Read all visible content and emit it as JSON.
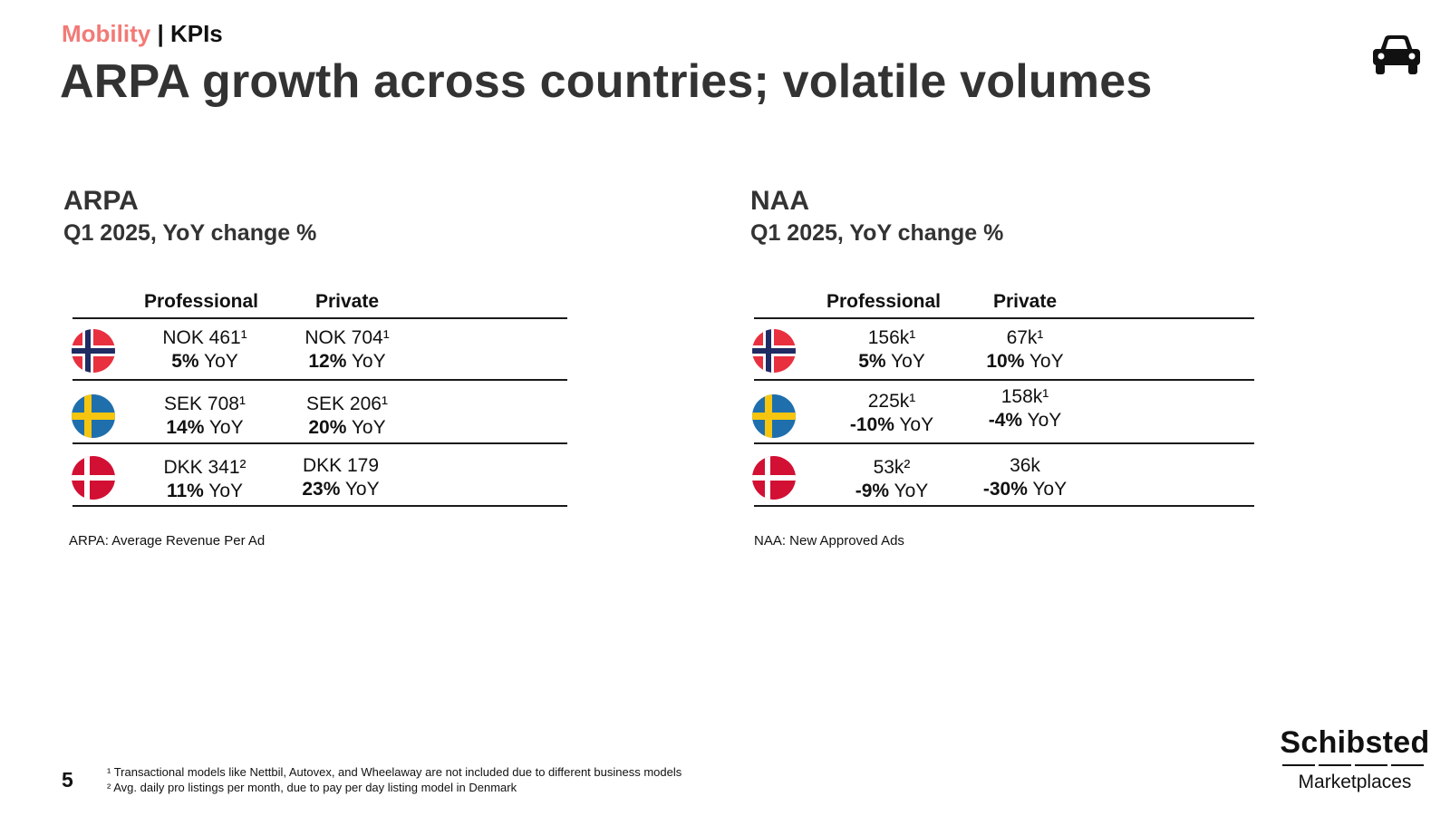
{
  "header": {
    "section": "Mobility",
    "separator": " | ",
    "subsection": "KPIs",
    "title": "ARPA growth across countries; volatile volumes",
    "icon": "car-icon"
  },
  "yoy_suffix": " YoY",
  "arpa": {
    "title": "ARPA",
    "subtitle": "Q1 2025, YoY change %",
    "columns": [
      "Professional",
      "Private"
    ],
    "rows": [
      {
        "flag": "norway-flag-icon",
        "professional": {
          "value": "NOK 461¹",
          "change": "5%"
        },
        "private": {
          "value": "NOK 704¹",
          "change": "12%"
        }
      },
      {
        "flag": "sweden-flag-icon",
        "professional": {
          "value": "SEK 708¹",
          "change": "14%"
        },
        "private": {
          "value": "SEK 206¹",
          "change": "20%"
        }
      },
      {
        "flag": "denmark-flag-icon",
        "professional": {
          "value": "DKK 341²",
          "change": "11%"
        },
        "private": {
          "value": "DKK 179",
          "change": "23%"
        }
      }
    ],
    "note": "ARPA: Average Revenue Per Ad"
  },
  "naa": {
    "title": "NAA",
    "subtitle": "Q1 2025, YoY change %",
    "columns": [
      "Professional",
      "Private"
    ],
    "rows": [
      {
        "flag": "norway-flag-icon",
        "professional": {
          "value": "156k¹",
          "change": "5%"
        },
        "private": {
          "value": "67k¹",
          "change": "10%"
        }
      },
      {
        "flag": "sweden-flag-icon",
        "professional": {
          "value": "225k¹",
          "change": "-10%"
        },
        "private": {
          "value": "158k¹",
          "change": "-4%"
        }
      },
      {
        "flag": "denmark-flag-icon",
        "professional": {
          "value": "53k²",
          "change": "-9%"
        },
        "private": {
          "value": "36k",
          "change": "-30%"
        }
      }
    ],
    "note": "NAA: New Approved Ads"
  },
  "footer": {
    "page_number": "5",
    "footnotes": [
      "¹ Transactional models like Nettbil, Autovex, and Wheelaway are not included due to different business models",
      "² Avg. daily pro listings per month, due to pay per day listing model in Denmark"
    ],
    "logo_name": "Schibsted",
    "logo_sub": "Marketplaces"
  },
  "colors": {
    "accent": "#f27a76",
    "text": "#333333",
    "norway_red": "#e8303e",
    "norway_blue": "#1f2b63",
    "sweden_blue": "#1f6fad",
    "sweden_yellow": "#f5c50f",
    "denmark_red": "#d21034"
  }
}
